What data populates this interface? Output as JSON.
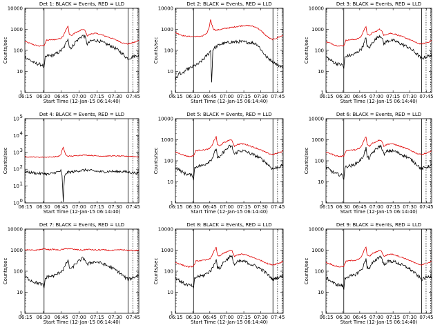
{
  "colors": {
    "events": "#000000",
    "lld": "#e00000",
    "axis": "#000000"
  },
  "xlabel": "Start Time (12-Jan-15 06:14:40)",
  "ylabel": "Counts/sec",
  "x_ticks": [
    "06:15",
    "06:30",
    "06:45",
    "07:00",
    "07:15",
    "07:30",
    "07:45"
  ],
  "y_ticks_default": [
    "1",
    "10",
    "100",
    "1000",
    "10000"
  ],
  "charts": [
    {
      "title": "Det 1: BLACK = Events, RED = LLD",
      "variant": "a",
      "ylim": [
        1,
        10000
      ],
      "tick_style": "plain"
    },
    {
      "title": "Det 2: BLACK = Events, RED = LLD",
      "variant": "b",
      "ylim": [
        1,
        10000
      ],
      "tick_style": "plain"
    },
    {
      "title": "Det 3: BLACK = Events, RED = LLD",
      "variant": "a",
      "ylim": [
        1,
        10000
      ],
      "tick_style": "plain"
    },
    {
      "title": "Det 4: BLACK = Events, RED = LLD",
      "variant": "c",
      "ylim": [
        1,
        100000
      ],
      "tick_style": "exp",
      "y_ticks_exp": [
        {
          "base": "10",
          "exp": "0"
        },
        {
          "base": "10",
          "exp": "1"
        },
        {
          "base": "10",
          "exp": "2"
        },
        {
          "base": "10",
          "exp": "3"
        },
        {
          "base": "10",
          "exp": "4"
        },
        {
          "base": "10",
          "exp": "5"
        }
      ]
    },
    {
      "title": "Det 5: BLACK = Events, RED = LLD",
      "variant": "a",
      "ylim": [
        1,
        10000
      ],
      "tick_style": "plain"
    },
    {
      "title": "Det 6: BLACK = Events, RED = LLD",
      "variant": "a",
      "ylim": [
        1,
        10000
      ],
      "tick_style": "plain"
    },
    {
      "title": "Det 7: BLACK = Events, RED = LLD",
      "variant": "d",
      "ylim": [
        1,
        10000
      ],
      "tick_style": "plain"
    },
    {
      "title": "Det 8: BLACK = Events, RED = LLD",
      "variant": "a",
      "ylim": [
        1,
        10000
      ],
      "tick_style": "plain"
    },
    {
      "title": "Det 9: BLACK = Events, RED = LLD",
      "variant": "a",
      "ylim": [
        1,
        10000
      ],
      "tick_style": "plain"
    }
  ],
  "chart_data": {
    "type": "line",
    "x_unit": "minutes since 06:14:40",
    "xlim": [
      0,
      95
    ],
    "scale_y": "log",
    "markers": {
      "solid": [
        16,
        86
      ],
      "dotted": [
        90,
        94
      ]
    },
    "series": {
      "a": {
        "Events": {
          "x": [
            0,
            4,
            8,
            12,
            15,
            16,
            17,
            19,
            24,
            28,
            32,
            34,
            36,
            37,
            39,
            42,
            45,
            48,
            50,
            52,
            55,
            58,
            62,
            66,
            70,
            74,
            78,
            80,
            82,
            84,
            86,
            88,
            90,
            93,
            95
          ],
          "y": [
            50,
            35,
            25,
            22,
            20,
            14,
            45,
            55,
            60,
            80,
            120,
            200,
            400,
            150,
            130,
            250,
            350,
            500,
            450,
            200,
            280,
            300,
            280,
            220,
            180,
            140,
            100,
            80,
            65,
            50,
            40,
            45,
            50,
            55,
            60
          ]
        },
        "LLD": {
          "x": [
            0,
            4,
            8,
            12,
            16,
            18,
            22,
            26,
            30,
            32,
            34,
            36,
            37,
            39,
            42,
            45,
            48,
            50,
            52,
            55,
            58,
            62,
            66,
            70,
            74,
            78,
            82,
            86,
            90,
            93,
            95
          ],
          "y": [
            260,
            220,
            180,
            160,
            170,
            300,
            320,
            330,
            380,
            500,
            900,
            1400,
            600,
            500,
            700,
            800,
            1000,
            900,
            500,
            600,
            650,
            600,
            500,
            420,
            350,
            280,
            220,
            200,
            230,
            260,
            300
          ]
        }
      },
      "b": {
        "Events": {
          "x": [
            0,
            2,
            4,
            6,
            8,
            10,
            12,
            14,
            16,
            18,
            20,
            22,
            24,
            26,
            28,
            30,
            31,
            32,
            33,
            34,
            36,
            40,
            44,
            48,
            52,
            56,
            60,
            64,
            66,
            68,
            72,
            76,
            80,
            84,
            86,
            88,
            90,
            93,
            95
          ],
          "y": [
            4,
            6,
            9,
            7,
            10,
            12,
            14,
            15,
            18,
            20,
            22,
            28,
            35,
            45,
            60,
            80,
            100,
            3,
            110,
            120,
            150,
            200,
            220,
            240,
            250,
            260,
            250,
            240,
            230,
            230,
            200,
            100,
            50,
            35,
            30,
            25,
            20,
            18,
            15
          ]
        },
        "LLD": {
          "x": [
            0,
            4,
            8,
            12,
            16,
            20,
            24,
            28,
            30,
            31,
            32,
            33,
            34,
            36,
            40,
            44,
            48,
            52,
            56,
            60,
            64,
            68,
            72,
            76,
            80,
            84,
            86,
            88,
            92,
            95
          ],
          "y": [
            700,
            560,
            480,
            460,
            450,
            460,
            480,
            650,
            1400,
            3000,
            1800,
            1200,
            1000,
            900,
            1000,
            1100,
            1200,
            1300,
            1400,
            1500,
            1500,
            1400,
            1200,
            800,
            500,
            350,
            330,
            360,
            450,
            520
          ]
        }
      },
      "c": {
        "Events": {
          "x": [
            0,
            4,
            8,
            12,
            16,
            20,
            24,
            28,
            30,
            31,
            32,
            33,
            34,
            36,
            40,
            44,
            48,
            52,
            56,
            60,
            64,
            68,
            72,
            76,
            80,
            84,
            88,
            92,
            95
          ],
          "y": [
            70,
            65,
            60,
            55,
            55,
            50,
            60,
            70,
            80,
            40,
            1.2,
            30,
            55,
            65,
            70,
            80,
            85,
            90,
            80,
            75,
            70,
            72,
            75,
            70,
            75,
            70,
            65,
            60,
            58
          ]
        },
        "LLD": {
          "x": [
            0,
            4,
            8,
            12,
            16,
            20,
            24,
            28,
            30,
            31,
            32,
            33,
            34,
            36,
            40,
            44,
            48,
            52,
            56,
            60,
            64,
            68,
            72,
            76,
            80,
            84,
            88,
            92,
            95
          ],
          "y": [
            550,
            540,
            530,
            520,
            520,
            530,
            540,
            580,
            700,
            1400,
            2000,
            1200,
            700,
            600,
            600,
            650,
            700,
            680,
            650,
            620,
            600,
            600,
            620,
            610,
            600,
            590,
            580,
            560,
            550
          ]
        }
      },
      "d": {
        "Events": {
          "x": [
            0,
            4,
            8,
            12,
            15,
            16,
            17,
            19,
            24,
            28,
            32,
            34,
            36,
            37,
            39,
            42,
            45,
            48,
            50,
            52,
            55,
            58,
            62,
            66,
            70,
            74,
            78,
            80,
            82,
            84,
            86,
            88,
            90,
            93,
            95
          ],
          "y": [
            55,
            40,
            30,
            26,
            22,
            16,
            45,
            55,
            60,
            80,
            120,
            200,
            350,
            150,
            130,
            220,
            300,
            400,
            380,
            200,
            260,
            280,
            260,
            210,
            170,
            130,
            95,
            75,
            60,
            48,
            40,
            45,
            50,
            58,
            65
          ]
        },
        "LLD": {
          "x": [
            0,
            4,
            8,
            12,
            16,
            20,
            24,
            28,
            32,
            36,
            40,
            44,
            48,
            52,
            56,
            60,
            64,
            68,
            72,
            76,
            80,
            84,
            86,
            88,
            92,
            95
          ],
          "y": [
            1050,
            1000,
            1000,
            1050,
            1150,
            1050,
            1100,
            1000,
            1100,
            1200,
            1100,
            1050,
            1000,
            1100,
            1050,
            1000,
            1050,
            1000,
            950,
            1000,
            1050,
            1000,
            950,
            1000,
            950,
            1000
          ]
        }
      }
    }
  }
}
